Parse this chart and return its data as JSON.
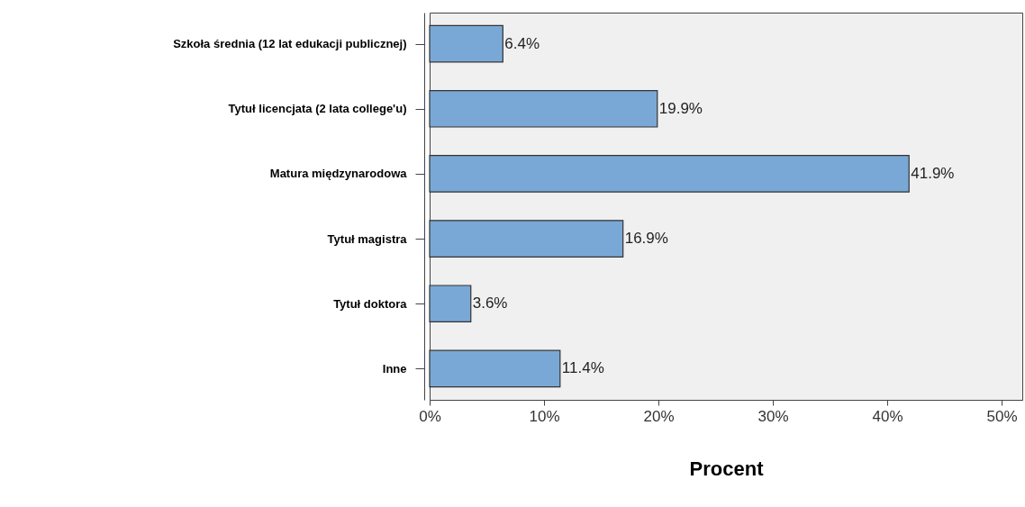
{
  "chart_data": {
    "type": "bar",
    "orientation": "horizontal",
    "xlabel": "Procent",
    "categories": [
      "Szkoła średnia (12 lat edukacji publicznej)",
      "Tytuł licencjata (2 lata college'u)",
      "Matura międzynarodowa",
      "Tytuł magistra",
      "Tytuł doktora",
      "Inne"
    ],
    "values": [
      6.4,
      19.9,
      41.9,
      16.9,
      3.6,
      11.4
    ],
    "value_labels": [
      "6.4%",
      "19.9%",
      "41.9%",
      "16.9%",
      "3.6%",
      "11.4%"
    ],
    "color": "#7aa8d6",
    "xlim": [
      0,
      51.8
    ],
    "xticks": [
      {
        "value": 0,
        "label": "0%"
      },
      {
        "value": 10,
        "label": "10%"
      },
      {
        "value": 20,
        "label": "20%"
      },
      {
        "value": 30,
        "label": "30%"
      },
      {
        "value": 40,
        "label": "40%"
      },
      {
        "value": 50,
        "label": "50%"
      }
    ],
    "grid": false
  }
}
